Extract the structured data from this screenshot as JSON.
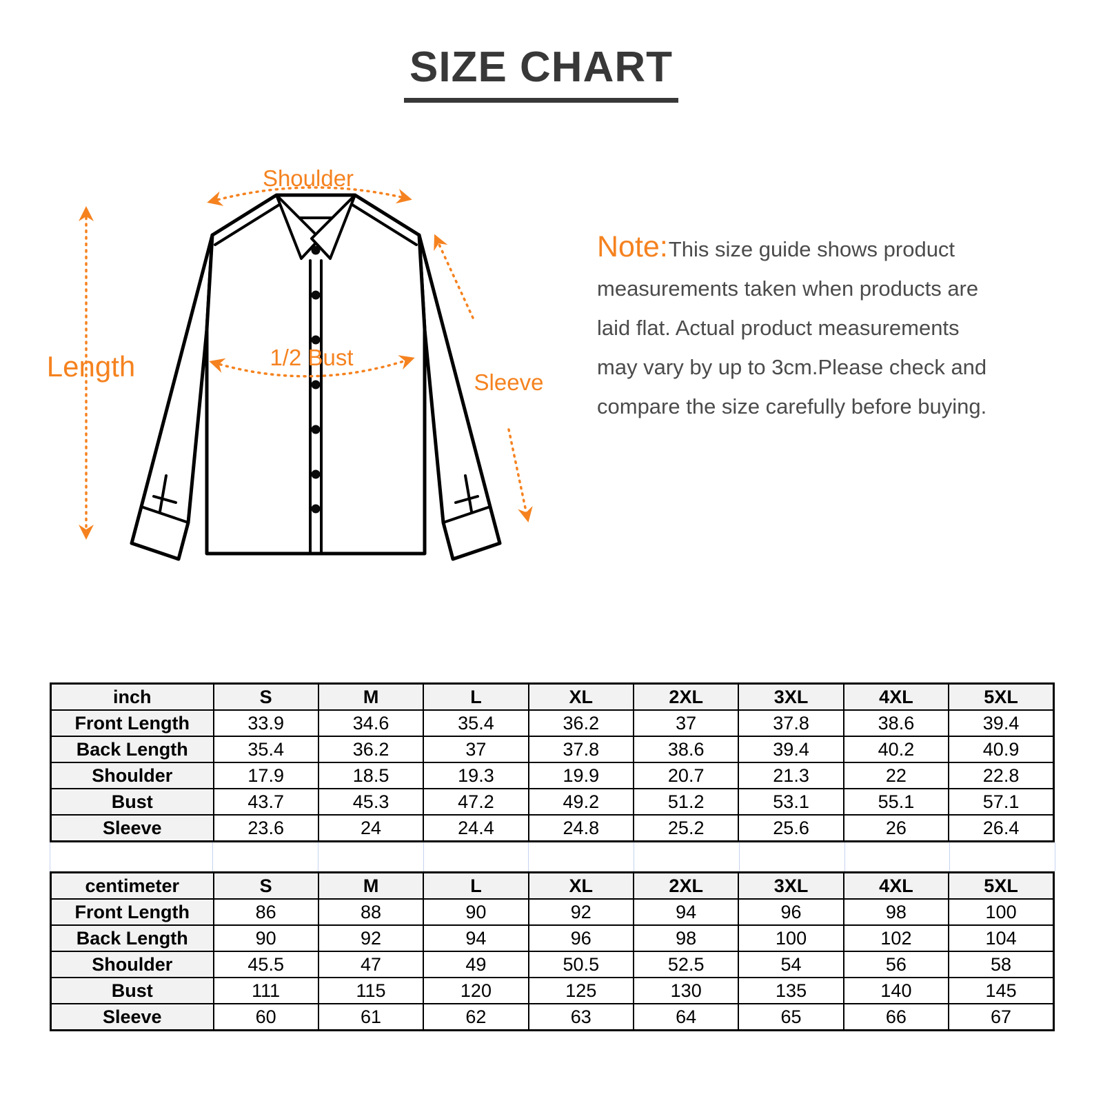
{
  "title": "SIZE CHART",
  "note": {
    "label": "Note:",
    "lines": [
      "This size guide shows product",
      "measurements taken when products are",
      "laid flat. Actual product measurements",
      "may vary by up to 3cm.Please check and",
      "compare the size carefully before buying."
    ]
  },
  "diagram": {
    "accent_color": "#f5821f",
    "labels": {
      "shoulder": "Shoulder",
      "length": "Length",
      "bust": "1/2 Bust",
      "sleeve": "Sleeve"
    }
  },
  "tables": [
    {
      "unit": "inch",
      "sizes": [
        "S",
        "M",
        "L",
        "XL",
        "2XL",
        "3XL",
        "4XL",
        "5XL"
      ],
      "rows": [
        {
          "label": "Front Length",
          "values": [
            "33.9",
            "34.6",
            "35.4",
            "36.2",
            "37",
            "37.8",
            "38.6",
            "39.4"
          ]
        },
        {
          "label": "Back Length",
          "values": [
            "35.4",
            "36.2",
            "37",
            "37.8",
            "38.6",
            "39.4",
            "40.2",
            "40.9"
          ]
        },
        {
          "label": "Shoulder",
          "values": [
            "17.9",
            "18.5",
            "19.3",
            "19.9",
            "20.7",
            "21.3",
            "22",
            "22.8"
          ]
        },
        {
          "label": "Bust",
          "values": [
            "43.7",
            "45.3",
            "47.2",
            "49.2",
            "51.2",
            "53.1",
            "55.1",
            "57.1"
          ]
        },
        {
          "label": "Sleeve",
          "values": [
            "23.6",
            "24",
            "24.4",
            "24.8",
            "25.2",
            "25.6",
            "26",
            "26.4"
          ]
        }
      ]
    },
    {
      "unit": "centimeter",
      "sizes": [
        "S",
        "M",
        "L",
        "XL",
        "2XL",
        "3XL",
        "4XL",
        "5XL"
      ],
      "rows": [
        {
          "label": "Front Length",
          "values": [
            "86",
            "88",
            "90",
            "92",
            "94",
            "96",
            "98",
            "100"
          ]
        },
        {
          "label": "Back Length",
          "values": [
            "90",
            "92",
            "94",
            "96",
            "98",
            "100",
            "102",
            "104"
          ]
        },
        {
          "label": "Shoulder",
          "values": [
            "45.5",
            "47",
            "49",
            "50.5",
            "52.5",
            "54",
            "56",
            "58"
          ]
        },
        {
          "label": "Bust",
          "values": [
            "111",
            "115",
            "120",
            "125",
            "130",
            "135",
            "140",
            "145"
          ]
        },
        {
          "label": "Sleeve",
          "values": [
            "60",
            "61",
            "62",
            "63",
            "64",
            "65",
            "66",
            "67"
          ]
        }
      ]
    }
  ]
}
